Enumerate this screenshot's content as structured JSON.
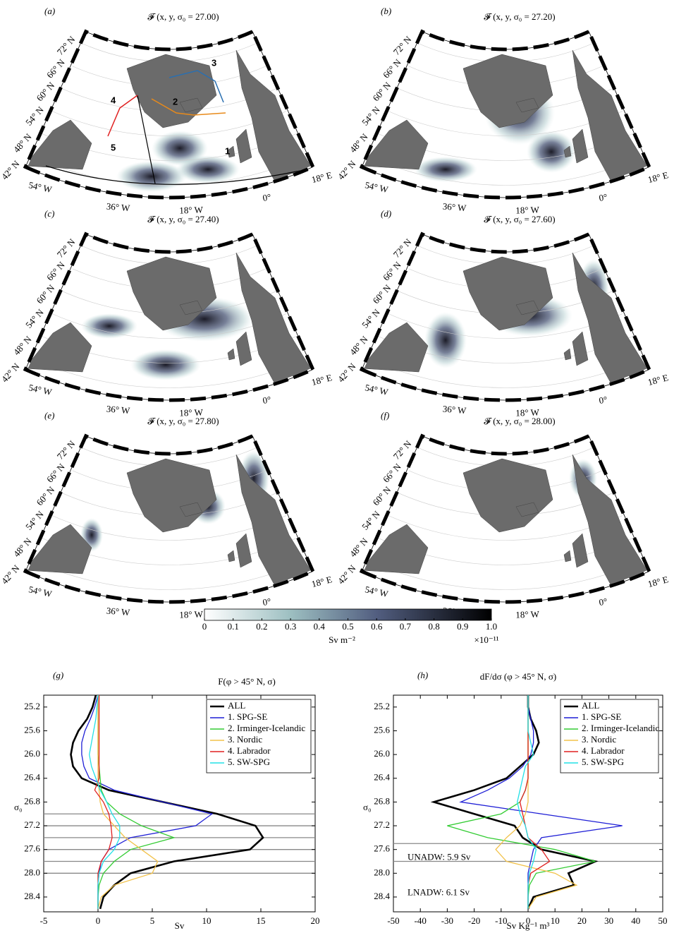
{
  "maps": {
    "panels": [
      {
        "label": "(a)",
        "title": "𝓕 (x, y, σ₀ = 27.00)"
      },
      {
        "label": "(b)",
        "title": "𝓕 (x, y, σ₀ = 27.20)"
      },
      {
        "label": "(c)",
        "title": "𝓕 (x, y, σ₀ = 27.40)"
      },
      {
        "label": "(d)",
        "title": "𝓕 (x, y, σ₀ = 27.60)"
      },
      {
        "label": "(e)",
        "title": "𝓕 (x, y, σ₀ = 27.80)"
      },
      {
        "label": "(f)",
        "title": "𝓕 (x, y, σ₀ = 28.00)"
      }
    ],
    "lat_labels": [
      "72° N",
      "66° N",
      "60° N",
      "54° N",
      "48° N",
      "42° N"
    ],
    "lon_labels": [
      "54° W",
      "36° W",
      "18° W",
      "0°",
      "18° E"
    ],
    "regions": [
      "1",
      "2",
      "3",
      "4",
      "5"
    ]
  },
  "colorbar": {
    "ticks": [
      0,
      0.1,
      0.2,
      0.3,
      0.4,
      0.5,
      0.6,
      0.7,
      0.8,
      0.9,
      {
        "value": 1,
        "label": "1.0"
      }
    ],
    "unit": "Sv m⁻²",
    "scale": "×10⁻¹¹"
  },
  "chart_data": [
    {
      "type": "line",
      "panel": "(g)",
      "title": "F(φ > 45° N, σ)",
      "x_label": "Sv",
      "y_label": "σ₀",
      "xlim": [
        -5,
        20
      ],
      "xticks": [
        -5,
        0,
        5,
        10,
        15,
        20
      ],
      "ylim": [
        25.0,
        28.65
      ],
      "y_inverted": true,
      "yticks": [
        25.2,
        25.6,
        {
          "value": 26,
          "label": "26.0"
        },
        26.4,
        26.8,
        27.2,
        27.6,
        {
          "value": 28,
          "label": "28.0"
        },
        28.4
      ],
      "hlines": [
        27.0,
        27.2,
        27.4,
        27.6,
        27.8,
        28.0
      ],
      "y": [
        25.0,
        25.2,
        25.4,
        25.6,
        25.8,
        26.0,
        26.2,
        26.4,
        26.6,
        26.8,
        27.0,
        27.2,
        27.4,
        27.6,
        27.8,
        28.0,
        28.2,
        28.4,
        28.6
      ],
      "series": [
        {
          "name": "ALL",
          "color": "#000000",
          "values": [
            -0.2,
            -0.5,
            -1.0,
            -1.8,
            -2.3,
            -2.5,
            -2.3,
            -1.5,
            1.0,
            6.0,
            11.0,
            14.5,
            15.2,
            14.0,
            7.0,
            3.0,
            1.5,
            0.5,
            0.2
          ]
        },
        {
          "name": "1. SPG-SE",
          "color": "#1f1fd6",
          "values": [
            0,
            -0.3,
            -0.7,
            -1.2,
            -1.5,
            -1.5,
            -1.3,
            -0.8,
            1.5,
            6.0,
            10.5,
            9.0,
            3.0,
            1.0,
            0.3,
            0.1,
            0,
            0,
            0
          ]
        },
        {
          "name": "2. Irminger-Icelandic",
          "color": "#33cc33",
          "values": [
            0,
            0,
            0,
            0,
            0,
            0,
            0.1,
            0.2,
            0.3,
            0.8,
            2.0,
            4.0,
            7.0,
            3.0,
            1.5,
            0.5,
            0.1,
            0,
            0
          ]
        },
        {
          "name": "3. Nordic",
          "color": "#f2c24a",
          "values": [
            0,
            0,
            0,
            0,
            0,
            0,
            0,
            0,
            0.1,
            0.2,
            0.5,
            1.5,
            2.5,
            4.0,
            5.5,
            5.0,
            1.5,
            0.3,
            0
          ]
        },
        {
          "name": "4. Labrador",
          "color": "#e02020",
          "values": [
            0.1,
            0.1,
            0.1,
            0.1,
            0.1,
            0.1,
            0.1,
            0.1,
            -0.3,
            0.5,
            1.0,
            1.2,
            1.3,
            1.0,
            0.3,
            0,
            0,
            0,
            0
          ]
        },
        {
          "name": "5. SW-SPG",
          "color": "#22e0e6",
          "values": [
            0,
            -0.1,
            -0.2,
            -0.4,
            -0.6,
            -0.8,
            -0.6,
            -0.2,
            0.2,
            0.8,
            1.3,
            2.0,
            2.0,
            1.5,
            0.5,
            0.1,
            0,
            0,
            0
          ]
        }
      ]
    },
    {
      "type": "line",
      "panel": "(h)",
      "title": "dF/dσ (φ > 45° N, σ)",
      "x_label": "Sv Kg⁻¹ m³",
      "y_label": "σ₀",
      "xlim": [
        -50,
        50
      ],
      "xticks": [
        -50,
        -40,
        -30,
        -20,
        -10,
        0,
        10,
        20,
        30,
        40,
        50
      ],
      "ylim": [
        25.0,
        28.65
      ],
      "y_inverted": true,
      "yticks": [
        25.2,
        25.6,
        {
          "value": 26,
          "label": "26.0"
        },
        26.4,
        26.8,
        27.2,
        27.6,
        {
          "value": 28,
          "label": "28.0"
        },
        28.4
      ],
      "hlines": [
        27.5,
        27.8
      ],
      "annotations": [
        "UNADW: 5.9 Sv",
        "LNADW: 6.1 Sv"
      ],
      "y": [
        25.0,
        25.2,
        25.4,
        25.6,
        25.8,
        26.0,
        26.2,
        26.4,
        26.6,
        26.8,
        27.0,
        27.2,
        27.4,
        27.6,
        27.8,
        28.0,
        28.2,
        28.4,
        28.6
      ],
      "series": [
        {
          "name": "ALL",
          "color": "#000000",
          "values": [
            0,
            0,
            1,
            3,
            4,
            2,
            -3,
            -8,
            -20,
            -35,
            -20,
            -5,
            -2,
            5,
            25,
            15,
            17,
            2,
            0
          ]
        },
        {
          "name": "1. SPG-SE",
          "color": "#1f1fd6",
          "values": [
            0,
            0,
            1,
            2,
            2,
            1,
            -2,
            -7,
            -15,
            -25,
            5,
            35,
            5,
            2,
            1,
            0,
            0,
            0,
            0
          ]
        },
        {
          "name": "2. Irminger-Icelandic",
          "color": "#33cc33",
          "values": [
            0,
            0,
            0,
            0,
            0,
            0,
            0,
            0,
            -1,
            -3,
            -10,
            -30,
            -15,
            10,
            25,
            3,
            0.5,
            0,
            0
          ]
        },
        {
          "name": "3. Nordic",
          "color": "#f2c24a",
          "values": [
            0,
            0,
            0,
            0,
            0,
            0,
            0,
            0,
            0,
            0,
            -1,
            -3,
            -8,
            -12,
            -8,
            10,
            18,
            3,
            0
          ]
        },
        {
          "name": "4. Labrador",
          "color": "#e02020",
          "values": [
            0,
            0,
            0,
            0,
            0,
            0,
            0,
            0,
            -1,
            -3,
            -2,
            -1,
            0,
            5,
            8,
            1,
            0,
            0,
            0
          ]
        },
        {
          "name": "5. SW-SPG",
          "color": "#22e0e6",
          "values": [
            0,
            0,
            0,
            0,
            1,
            2,
            -1,
            -2,
            -3,
            -4,
            -3,
            -1,
            0,
            3,
            2,
            0.5,
            0,
            0,
            0
          ]
        }
      ]
    }
  ]
}
